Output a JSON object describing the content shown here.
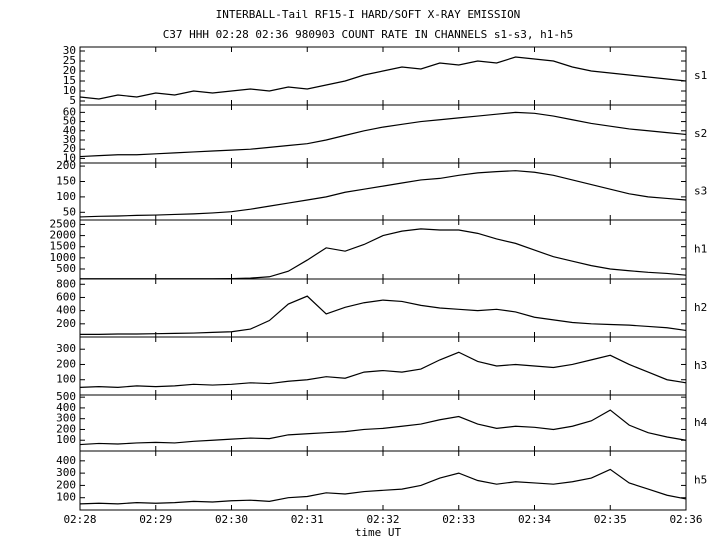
{
  "chart_data": [
    {
      "type": "line",
      "title": "INTERBALL-Tail RF15-I HARD/SOFT X-RAY EMISSION",
      "subtitle": "C37 HHH 02:28 02:36 980903  COUNT RATE IN CHANNELS s1-s3, h1-h5",
      "channel": "s1",
      "x": [
        148,
        148.25,
        148.5,
        148.75,
        149,
        149.25,
        149.5,
        149.75,
        150,
        150.25,
        150.5,
        150.75,
        151,
        151.25,
        151.5,
        151.75,
        152,
        152.25,
        152.5,
        152.75,
        153,
        153.25,
        153.5,
        153.75,
        154,
        154.25,
        154.5,
        154.75,
        155,
        155.25,
        155.5,
        155.75,
        156
      ],
      "values": [
        7,
        6,
        8,
        7,
        9,
        8,
        10,
        9,
        10,
        11,
        10,
        12,
        11,
        13,
        15,
        18,
        20,
        22,
        21,
        24,
        23,
        25,
        24,
        27,
        26,
        25,
        22,
        20,
        19,
        18,
        17,
        16,
        15
      ],
      "xlim": [
        148,
        156
      ],
      "ylim": [
        3,
        32
      ],
      "yticks": [
        5,
        10,
        15,
        20,
        25,
        30
      ]
    },
    {
      "type": "line",
      "channel": "s2",
      "x": [
        148,
        148.25,
        148.5,
        148.75,
        149,
        149.25,
        149.5,
        149.75,
        150,
        150.25,
        150.5,
        150.75,
        151,
        151.25,
        151.5,
        151.75,
        152,
        152.25,
        152.5,
        152.75,
        153,
        153.25,
        153.5,
        153.75,
        154,
        154.25,
        154.5,
        154.75,
        155,
        155.25,
        155.5,
        155.75,
        156
      ],
      "values": [
        12,
        13,
        14,
        14,
        15,
        16,
        17,
        18,
        19,
        20,
        22,
        24,
        26,
        30,
        35,
        40,
        44,
        47,
        50,
        52,
        54,
        56,
        58,
        60,
        59,
        56,
        52,
        48,
        45,
        42,
        40,
        38,
        36
      ],
      "xlim": [
        148,
        156
      ],
      "ylim": [
        5,
        68
      ],
      "yticks": [
        10,
        20,
        30,
        40,
        50,
        60
      ]
    },
    {
      "type": "line",
      "channel": "s3",
      "x": [
        148,
        148.25,
        148.5,
        148.75,
        149,
        149.25,
        149.5,
        149.75,
        150,
        150.25,
        150.5,
        150.75,
        151,
        151.25,
        151.5,
        151.75,
        152,
        152.25,
        152.5,
        152.75,
        153,
        153.25,
        153.5,
        153.75,
        154,
        154.25,
        154.5,
        154.75,
        155,
        155.25,
        155.5,
        155.75,
        156
      ],
      "values": [
        35,
        37,
        38,
        40,
        41,
        43,
        45,
        48,
        52,
        60,
        70,
        80,
        90,
        100,
        115,
        125,
        135,
        145,
        155,
        160,
        170,
        178,
        182,
        185,
        180,
        170,
        155,
        140,
        125,
        110,
        100,
        95,
        90
      ],
      "xlim": [
        148,
        156
      ],
      "ylim": [
        25,
        210
      ],
      "yticks": [
        50,
        100,
        150,
        200
      ]
    },
    {
      "type": "line",
      "channel": "h1",
      "x": [
        148,
        148.25,
        148.5,
        148.75,
        149,
        149.25,
        149.5,
        149.75,
        150,
        150.25,
        150.5,
        150.75,
        151,
        151.25,
        151.5,
        151.75,
        152,
        152.25,
        152.5,
        152.75,
        153,
        153.25,
        153.5,
        153.75,
        154,
        154.25,
        154.5,
        154.75,
        155,
        155.25,
        155.5,
        155.75,
        156
      ],
      "values": [
        60,
        60,
        60,
        60,
        60,
        60,
        60,
        60,
        70,
        90,
        150,
        400,
        900,
        1450,
        1300,
        1600,
        2000,
        2200,
        2300,
        2250,
        2250,
        2100,
        1850,
        1650,
        1350,
        1050,
        850,
        650,
        500,
        420,
        350,
        300,
        220
      ],
      "xlim": [
        148,
        156
      ],
      "ylim": [
        50,
        2700
      ],
      "yticks": [
        500,
        1000,
        1500,
        2000,
        2500
      ]
    },
    {
      "type": "line",
      "channel": "h2",
      "x": [
        148,
        148.25,
        148.5,
        148.75,
        149,
        149.25,
        149.5,
        149.75,
        150,
        150.25,
        150.5,
        150.75,
        151,
        151.25,
        151.5,
        151.75,
        152,
        152.25,
        152.5,
        152.75,
        153,
        153.25,
        153.5,
        153.75,
        154,
        154.25,
        154.5,
        154.75,
        155,
        155.25,
        155.5,
        155.75,
        156
      ],
      "values": [
        40,
        40,
        45,
        45,
        50,
        55,
        60,
        70,
        80,
        120,
        250,
        500,
        620,
        350,
        450,
        520,
        560,
        540,
        480,
        440,
        420,
        400,
        420,
        380,
        300,
        260,
        220,
        200,
        190,
        180,
        160,
        140,
        100
      ],
      "xlim": [
        148,
        156
      ],
      "ylim": [
        0,
        880
      ],
      "yticks": [
        200,
        400,
        600,
        800
      ]
    },
    {
      "type": "line",
      "channel": "h3",
      "x": [
        148,
        148.25,
        148.5,
        148.75,
        149,
        149.25,
        149.5,
        149.75,
        150,
        150.25,
        150.5,
        150.75,
        151,
        151.25,
        151.5,
        151.75,
        152,
        152.25,
        152.5,
        152.75,
        153,
        153.25,
        153.5,
        153.75,
        154,
        154.25,
        154.5,
        154.75,
        155,
        155.25,
        155.5,
        155.75,
        156
      ],
      "values": [
        50,
        55,
        50,
        60,
        55,
        60,
        70,
        65,
        70,
        80,
        75,
        90,
        100,
        120,
        110,
        150,
        160,
        150,
        170,
        230,
        280,
        220,
        190,
        200,
        190,
        180,
        200,
        230,
        260,
        200,
        150,
        100,
        80
      ],
      "xlim": [
        148,
        156
      ],
      "ylim": [
        0,
        380
      ],
      "yticks": [
        100,
        200,
        300
      ]
    },
    {
      "type": "line",
      "channel": "h4",
      "x": [
        148,
        148.25,
        148.5,
        148.75,
        149,
        149.25,
        149.5,
        149.75,
        150,
        150.25,
        150.5,
        150.75,
        151,
        151.25,
        151.5,
        151.75,
        152,
        152.25,
        152.5,
        152.75,
        153,
        153.25,
        153.5,
        153.75,
        154,
        154.25,
        154.5,
        154.75,
        155,
        155.25,
        155.5,
        155.75,
        156
      ],
      "values": [
        60,
        70,
        65,
        75,
        80,
        75,
        90,
        100,
        110,
        120,
        115,
        150,
        160,
        170,
        180,
        200,
        210,
        230,
        250,
        290,
        320,
        250,
        210,
        230,
        220,
        200,
        230,
        280,
        380,
        240,
        170,
        130,
        100
      ],
      "xlim": [
        148,
        156
      ],
      "ylim": [
        0,
        520
      ],
      "yticks": [
        100,
        200,
        300,
        400,
        500
      ]
    },
    {
      "type": "line",
      "channel": "h5",
      "xlabel": "time UT",
      "x": [
        148,
        148.25,
        148.5,
        148.75,
        149,
        149.25,
        149.5,
        149.75,
        150,
        150.25,
        150.5,
        150.75,
        151,
        151.25,
        151.5,
        151.75,
        152,
        152.25,
        152.5,
        152.75,
        153,
        153.25,
        153.5,
        153.75,
        154,
        154.25,
        154.5,
        154.75,
        155,
        155.25,
        155.5,
        155.75,
        156
      ],
      "values": [
        50,
        55,
        50,
        60,
        55,
        60,
        70,
        65,
        75,
        80,
        70,
        100,
        110,
        140,
        130,
        150,
        160,
        170,
        200,
        260,
        300,
        240,
        210,
        230,
        220,
        210,
        230,
        260,
        330,
        220,
        170,
        120,
        90
      ],
      "xlim": [
        148,
        156
      ],
      "ylim": [
        0,
        480
      ],
      "yticks": [
        100,
        200,
        300,
        400
      ],
      "xticks": [
        {
          "value": 148,
          "label": "02:28"
        },
        {
          "value": 149,
          "label": "02:29"
        },
        {
          "value": 150,
          "label": "02:30"
        },
        {
          "value": 151,
          "label": "02:31"
        },
        {
          "value": 152,
          "label": "02:32"
        },
        {
          "value": 153,
          "label": "02:33"
        },
        {
          "value": 154,
          "label": "02:34"
        },
        {
          "value": 155,
          "label": "02:35"
        },
        {
          "value": 156,
          "label": "02:36"
        }
      ]
    }
  ]
}
